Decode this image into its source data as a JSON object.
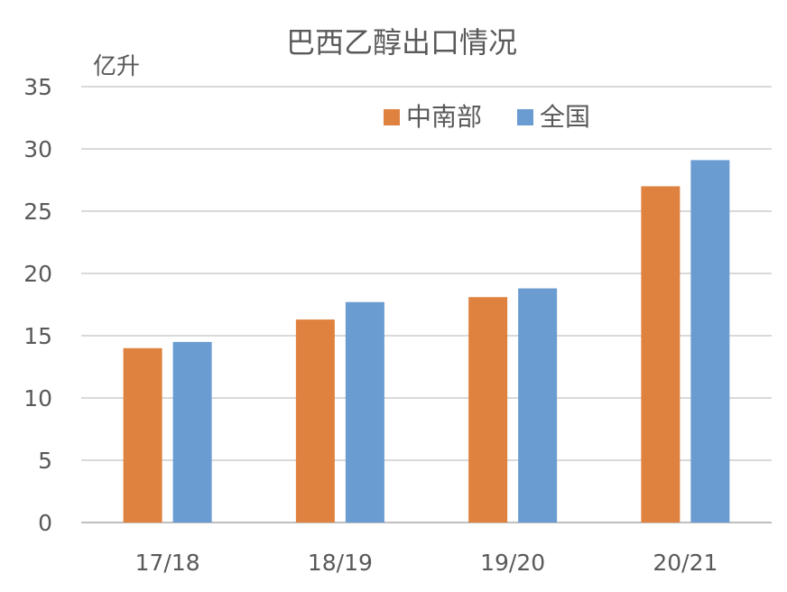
{
  "chart_data": {
    "type": "bar",
    "title": "巴西乙醇出口情况",
    "ylabel": "亿升",
    "categories": [
      "17/18",
      "18/19",
      "19/20",
      "20/21"
    ],
    "series": [
      {
        "name": "中南部",
        "values": [
          14.0,
          16.3,
          18.1,
          27.0
        ],
        "color": "#E0823F"
      },
      {
        "name": "全国",
        "values": [
          14.5,
          17.7,
          18.8,
          29.1
        ],
        "color": "#6A9BD1"
      }
    ],
    "ylim": [
      0,
      35
    ],
    "yticks": [
      "0",
      "5",
      "10",
      "15",
      "20",
      "25",
      "30",
      "35"
    ],
    "grid": true,
    "legend_position": "top-right"
  }
}
